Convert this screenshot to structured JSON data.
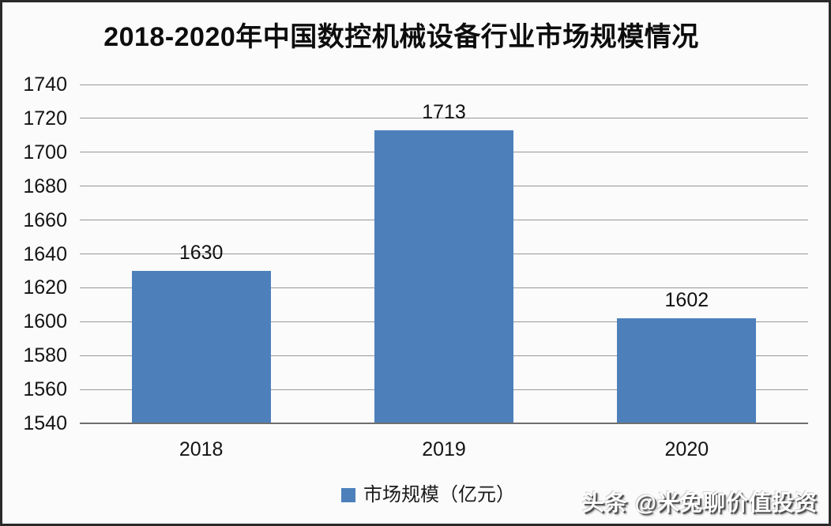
{
  "chart": {
    "title": "2018-2020年中国数控机械设备行业市场规模情况",
    "legend_label": "市场规模（亿元）"
  },
  "chart_data": {
    "type": "bar",
    "title": "2018-2020年中国数控机械设备行业市场规模情况",
    "categories": [
      "2018",
      "2019",
      "2020"
    ],
    "series": [
      {
        "name": "市场规模（亿元）",
        "values": [
          1630,
          1713,
          1602
        ]
      }
    ],
    "data_labels": [
      "1630",
      "1713",
      "1602"
    ],
    "xlabel": "",
    "ylabel": "",
    "ylim": [
      1540,
      1740
    ],
    "yticks": [
      1540,
      1560,
      1580,
      1600,
      1620,
      1640,
      1660,
      1680,
      1700,
      1720,
      1740
    ],
    "grid": true,
    "legend_position": "bottom",
    "bar_color": "#4d80bb",
    "gridline_color": "#979797",
    "axis_line_color": "#6f6f6f",
    "text_color": "#141414",
    "background_color": "#fbfbfb"
  },
  "watermark": {
    "text": "头条 @米兔聊价值投资"
  }
}
